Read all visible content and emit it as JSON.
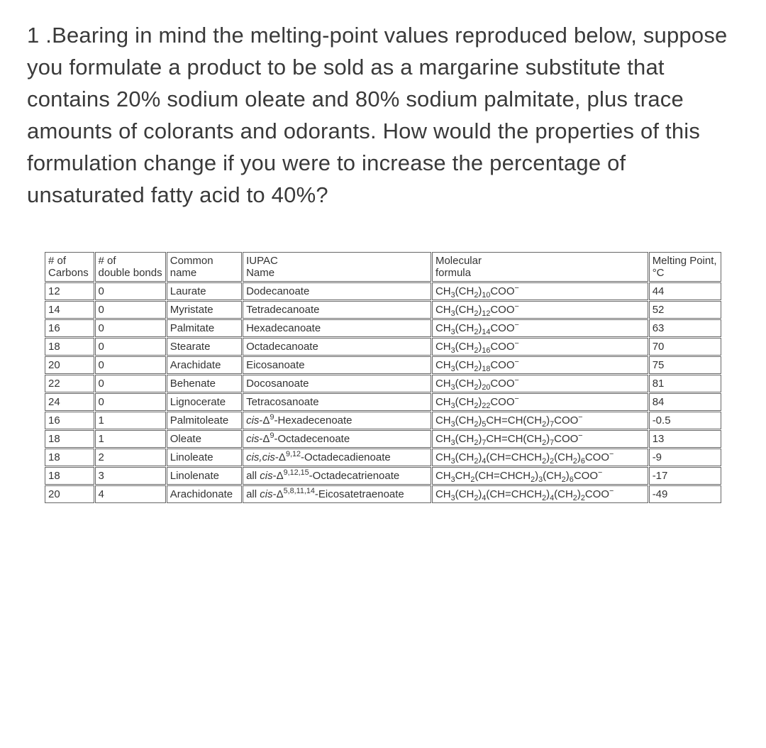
{
  "question": "1 .Bearing in mind the melting-point values reproduced below, suppose you formulate a product to be sold as a margarine substitute that contains 20% sodium oleate and 80% sodium palmitate, plus trace amounts of colorants and odorants. How would the properties of this formulation change if you were to increase the percentage of unsaturated fatty acid to 40%?",
  "columns": {
    "carbons": "# of\nCarbons",
    "bonds": "# of\ndouble bonds",
    "common": "Common\nname",
    "iupac": "IUPAC\nName",
    "formula": "Molecular\nformula",
    "melting": "Melting Point,\n°C"
  },
  "rows": [
    {
      "carbons": "12",
      "bonds": "0",
      "common": "Laurate",
      "iupac_html": "Dodecanoate",
      "formula_html": "CH<sub>3</sub>(CH<sub>2</sub>)<sub>10</sub>COO<sup>−</sup>",
      "melting": "44"
    },
    {
      "carbons": "14",
      "bonds": "0",
      "common": "Myristate",
      "iupac_html": "Tetradecanoate",
      "formula_html": "CH<sub>3</sub>(CH<sub>2</sub>)<sub>12</sub>COO<sup>−</sup>",
      "melting": "52"
    },
    {
      "carbons": "16",
      "bonds": "0",
      "common": "Palmitate",
      "iupac_html": "Hexadecanoate",
      "formula_html": "CH<sub>3</sub>(CH<sub>2</sub>)<sub>14</sub>COO<sup>−</sup>",
      "melting": "63"
    },
    {
      "carbons": "18",
      "bonds": "0",
      "common": "Stearate",
      "iupac_html": "Octadecanoate",
      "formula_html": "CH<sub>3</sub>(CH<sub>2</sub>)<sub>16</sub>COO<sup>−</sup>",
      "melting": "70"
    },
    {
      "carbons": "20",
      "bonds": "0",
      "common": "Arachidate",
      "iupac_html": "Eicosanoate",
      "formula_html": "CH<sub>3</sub>(CH<sub>2</sub>)<sub>18</sub>COO<sup>−</sup>",
      "melting": "75"
    },
    {
      "carbons": "22",
      "bonds": "0",
      "common": "Behenate",
      "iupac_html": "Docosanoate",
      "formula_html": "CH<sub>3</sub>(CH<sub>2</sub>)<sub>20</sub>COO<sup>−</sup>",
      "melting": "81"
    },
    {
      "carbons": "24",
      "bonds": "0",
      "common": "Lignocerate",
      "iupac_html": "Tetracosanoate",
      "formula_html": "CH<sub>3</sub>(CH<sub>2</sub>)<sub>22</sub>COO<sup>−</sup>",
      "melting": "84"
    },
    {
      "carbons": "16",
      "bonds": "1",
      "common": "Palmitoleate",
      "iupac_html": "<i>cis</i>-Δ<sup>9</sup>-Hexadecenoate",
      "formula_html": "CH<sub>3</sub>(CH<sub>2</sub>)<sub>5</sub>CH=CH(CH<sub>2</sub>)<sub>7</sub>COO<sup>−</sup>",
      "melting": "-0.5"
    },
    {
      "carbons": "18",
      "bonds": "1",
      "common": "Oleate",
      "iupac_html": "<i>cis</i>-Δ<sup>9</sup>-Octadecenoate",
      "formula_html": "CH<sub>3</sub>(CH<sub>2</sub>)<sub>7</sub>CH=CH(CH<sub>2</sub>)<sub>7</sub>COO<sup>−</sup>",
      "melting": "13"
    },
    {
      "carbons": "18",
      "bonds": "2",
      "common": "Linoleate",
      "iupac_html": "<i>cis,cis</i>-Δ<sup>9,12</sup>-Octadecadienoate",
      "formula_html": "CH<sub>3</sub>(CH<sub>2</sub>)<sub>4</sub>(CH=CHCH<sub>2</sub>)<sub>2</sub>(CH<sub>2</sub>)<sub>6</sub>COO<sup>−</sup>",
      "melting": "-9"
    },
    {
      "carbons": "18",
      "bonds": "3",
      "common": "Linolenate",
      "iupac_html": "all <i>cis</i>-Δ<sup>9,12,15</sup>-Octadecatrienoate",
      "formula_html": "CH<sub>3</sub>CH<sub>2</sub>(CH=CHCH<sub>2</sub>)<sub>3</sub>(CH<sub>2</sub>)<sub>6</sub>COO<sup>−</sup>",
      "melting": "-17"
    },
    {
      "carbons": "20",
      "bonds": "4",
      "common": "Arachidonate",
      "iupac_html": "all <i>cis</i>-Δ<sup>5,8,11,14</sup>-Eicosatetraenoate",
      "formula_html": "CH<sub>3</sub>(CH<sub>2</sub>)<sub>4</sub>(CH=CHCH<sub>2</sub>)<sub>4</sub>(CH<sub>2</sub>)<sub>2</sub>COO<sup>−</sup>",
      "melting": "-49"
    }
  ]
}
